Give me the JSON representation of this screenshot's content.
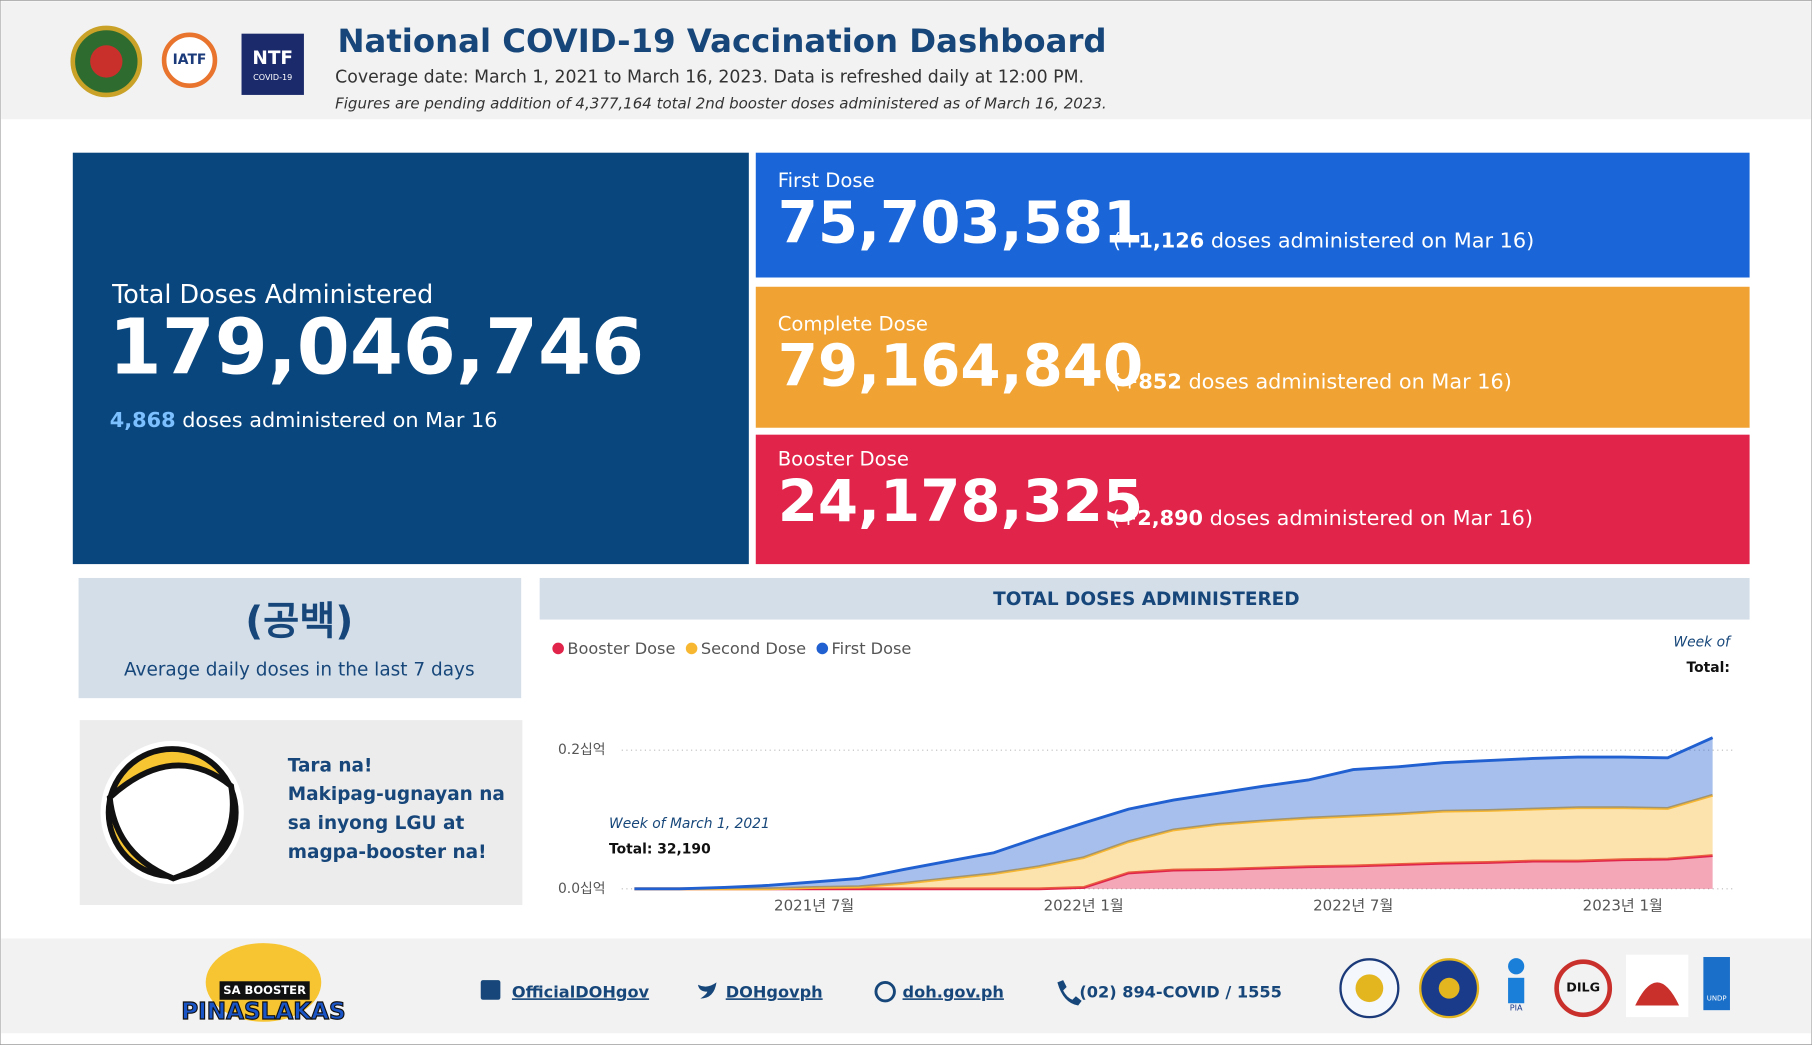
{
  "header": {
    "title": "National COVID-19 Vaccination Dashboard",
    "subtitle": "Coverage date: March 1, 2021 to March 16, 2023. Data is refreshed daily at 12:00 PM.",
    "note": "Figures are pending addition of 4,377,164 total 2nd booster doses administered as of March 16, 2023.",
    "logos": [
      "IATF",
      "NTF",
      "COVID-19"
    ]
  },
  "total_card": {
    "label": "Total Doses Administered",
    "value": "179,046,746",
    "delta": "4,868",
    "delta_text": "doses administered on Mar 16"
  },
  "dose_cards": [
    {
      "label": "First Dose",
      "value": "75,703,581",
      "delta_open": "(+",
      "delta": "1,126",
      "delta_text": "doses administered on Mar 16)"
    },
    {
      "label": "Complete Dose",
      "value": "79,164,840",
      "delta_open": "(+",
      "delta": "852",
      "delta_text": "doses administered on Mar 16)"
    },
    {
      "label": "Booster Dose",
      "value": "24,178,325",
      "delta_open": "(+",
      "delta": "2,890",
      "delta_text": "doses administered on Mar 16)"
    }
  ],
  "average_card": {
    "value": "(공백)",
    "label": "Average daily doses in the last 7 days"
  },
  "promo": {
    "lines": [
      "Tara na!",
      "Makipag-ugnayan na",
      "sa inyong LGU at",
      "magpa-booster na!"
    ]
  },
  "chart_data": {
    "type": "stacked_area",
    "title": "TOTAL DOSES ADMINISTERED",
    "categories": [
      null,
      null,
      null,
      null,
      "2021년 7월",
      null,
      null,
      null,
      null,
      null,
      "2022년 1월",
      null,
      null,
      null,
      null,
      null,
      "2022년 7월",
      null,
      null,
      null,
      null,
      null,
      "2023년 1월",
      null,
      null
    ],
    "series": [
      {
        "name": "Booster Dose",
        "color": "#e0244a",
        "values": [
          0,
          0,
          0,
          0,
          0,
          0,
          0,
          0,
          0,
          0,
          0.002,
          0.023,
          0.027,
          0.028,
          0.03,
          0.032,
          0.033,
          0.035,
          0.037,
          0.038,
          0.04,
          0.04,
          0.042,
          0.043,
          0.048
        ]
      },
      {
        "name": "Second Dose",
        "color": "#f7b731",
        "values": [
          0,
          0,
          0,
          0,
          0.002,
          0.003,
          0.008,
          0.015,
          0.022,
          0.032,
          0.043,
          0.045,
          0.058,
          0.065,
          0.068,
          0.07,
          0.072,
          0.073,
          0.075,
          0.075,
          0.075,
          0.077,
          0.075,
          0.073,
          0.087
        ]
      },
      {
        "name": "First Dose",
        "color": "#2060d0",
        "values": [
          0,
          0,
          0.002,
          0.005,
          0.008,
          0.012,
          0.02,
          0.025,
          0.03,
          0.042,
          0.05,
          0.047,
          0.043,
          0.045,
          0.05,
          0.055,
          0.067,
          0.068,
          0.07,
          0.072,
          0.073,
          0.073,
          0.073,
          0.073,
          0.083
        ]
      }
    ],
    "ylim": [
      0,
      0.23
    ],
    "yticks": [
      {
        "value": 0,
        "label": "0.0십억"
      },
      {
        "value": 0.2,
        "label": "0.2십억"
      }
    ],
    "grid": true,
    "tooltip": {
      "title": "Week of March 1, 2021",
      "total": "Total: 32,190"
    },
    "tooltip_clipped": {
      "title": "Week of",
      "total": "Total:"
    }
  },
  "footer": {
    "logo_top": "SA BOOSTER",
    "logo_bottom": "PINASLAKAS",
    "links": [
      "OfficialDOHgov",
      "DOHgovph",
      "doh.gov.ph",
      "(02) 894-COVID / 1555"
    ],
    "partners": [
      "DILG",
      "PIA",
      "UNDP"
    ]
  }
}
